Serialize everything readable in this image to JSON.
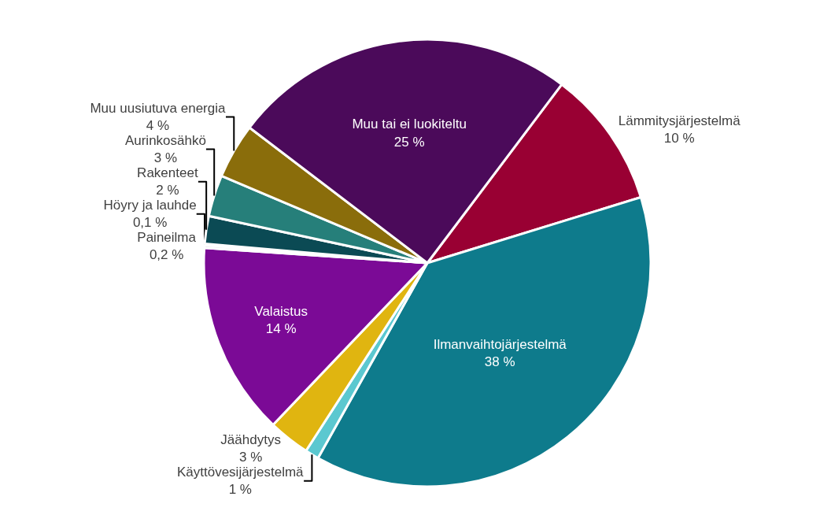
{
  "chart_data": {
    "type": "pie",
    "categories": [
      "Lämmitysjärjestelmä",
      "Ilmanvaihtojärjestelmä",
      "Käyttövesijärjestelmä",
      "Jäähdytys",
      "Valaistus",
      "Paineilma",
      "Höyry ja lauhde",
      "Rakenteet",
      "Aurinkosähkö",
      "Muu uusiutuva energia",
      "Muu tai ei luokiteltu"
    ],
    "values": [
      10,
      38,
      1,
      3,
      14,
      0.2,
      0.1,
      2,
      3,
      4,
      25
    ],
    "value_labels": [
      "10 %",
      "38 %",
      "1 %",
      "3 %",
      "14 %",
      "0,2 %",
      "0,1 %",
      "2 %",
      "3 %",
      "4 %",
      "25 %"
    ],
    "colors": [
      "#990033",
      "#0e7b8c",
      "#5bc8d0",
      "#e0b510",
      "#7b0a96",
      "#d9d9d9",
      "#bfbfbf",
      "#0b4a54",
      "#267f7a",
      "#8a6d0b",
      "#4b0a5a"
    ],
    "legend": false
  }
}
